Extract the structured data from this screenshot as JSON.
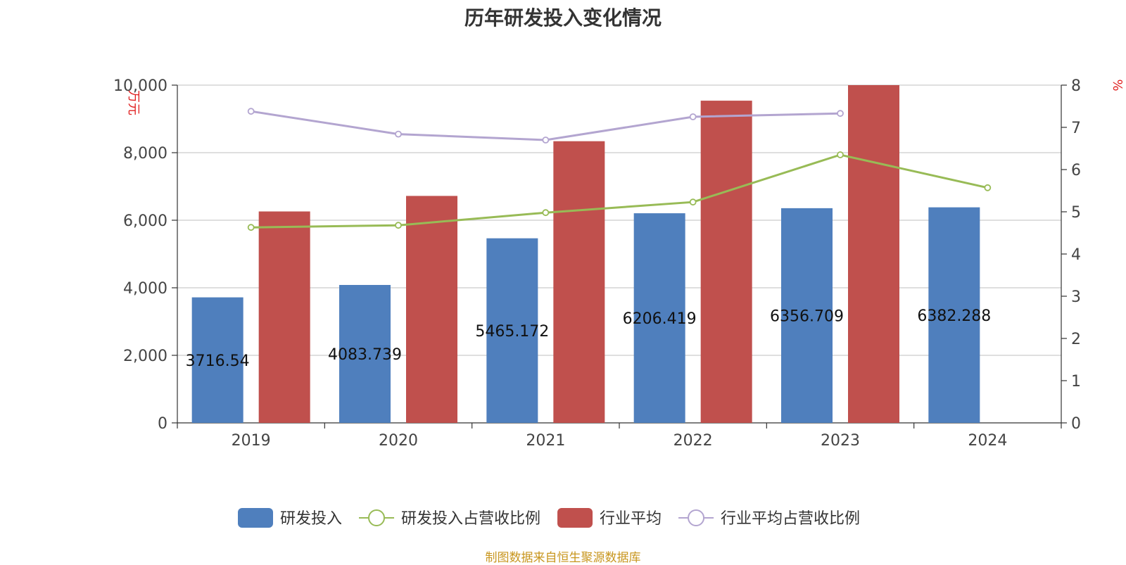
{
  "chart_data": {
    "type": "bar",
    "title": "历年研发投入变化情况",
    "categories": [
      "2019",
      "2020",
      "2021",
      "2022",
      "2023",
      "2024"
    ],
    "y_left": {
      "label": "万元",
      "ylim": [
        0,
        10000
      ],
      "ticks": [
        "0",
        "2,000",
        "4,000",
        "6,000",
        "8,000",
        "10,000"
      ]
    },
    "y_right": {
      "label": "%",
      "ylim": [
        0,
        8
      ],
      "ticks": [
        "0",
        "1",
        "2",
        "3",
        "4",
        "5",
        "6",
        "7",
        "8"
      ]
    },
    "series": [
      {
        "name": "研发投入",
        "type": "bar",
        "axis": "left",
        "color": "#4f7fbd",
        "values": [
          3716.54,
          4083.739,
          5465.172,
          6206.419,
          6356.709,
          6382.288
        ],
        "labels": [
          "3716.54",
          "4083.739",
          "5465.172",
          "6206.419",
          "6356.709",
          "6382.288"
        ]
      },
      {
        "name": "研发投入占营收比例",
        "type": "line",
        "axis": "right",
        "color": "#98bb56",
        "values": [
          4.63,
          4.68,
          4.98,
          5.23,
          6.35,
          5.57
        ]
      },
      {
        "name": "行业平均",
        "type": "bar",
        "axis": "left",
        "color": "#c0504d",
        "values": [
          6260,
          6720,
          8340,
          9540,
          10000,
          null
        ]
      },
      {
        "name": "行业平均占营收比例",
        "type": "line",
        "axis": "right",
        "color": "#b3a5d0",
        "values": [
          7.38,
          6.84,
          6.7,
          7.25,
          7.33,
          null
        ]
      }
    ],
    "grid": true,
    "legend_position": "bottom"
  },
  "source_text": "制图数据来自恒生聚源数据库"
}
